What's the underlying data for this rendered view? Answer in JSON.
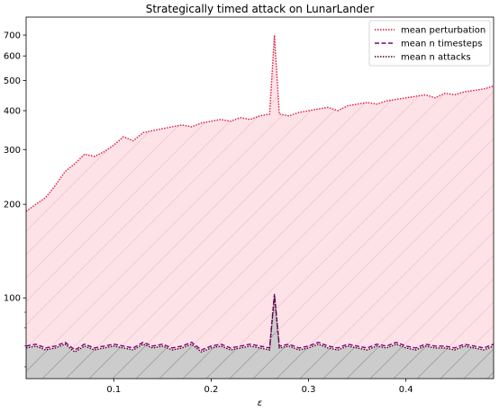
{
  "chart_data": {
    "type": "line",
    "title": "Strategically timed attack on LunarLander",
    "xlabel": "ε",
    "ylabel": "",
    "yscale": "log",
    "xlim": [
      0.01,
      0.49
    ],
    "ylim": [
      55,
      800
    ],
    "x_ticks": [
      0.1,
      0.2,
      0.3,
      0.4
    ],
    "x_tick_labels": [
      "0.1",
      "0.2",
      "0.3",
      "0.4"
    ],
    "y_ticks": [
      100,
      200,
      300,
      400,
      500,
      600,
      700
    ],
    "y_tick_labels": [
      "100",
      "200",
      "300",
      "400",
      "500",
      "600",
      "700"
    ],
    "legend_position": "top-right",
    "series": [
      {
        "name": "mean perturbation",
        "style": "dotted",
        "color": "#dc143c",
        "fill": "#fde3e8",
        "x": [
          0.01,
          0.02,
          0.03,
          0.04,
          0.05,
          0.06,
          0.07,
          0.08,
          0.09,
          0.1,
          0.11,
          0.12,
          0.13,
          0.14,
          0.15,
          0.16,
          0.17,
          0.18,
          0.19,
          0.2,
          0.21,
          0.22,
          0.23,
          0.24,
          0.25,
          0.26,
          0.265,
          0.27,
          0.28,
          0.29,
          0.3,
          0.31,
          0.32,
          0.33,
          0.34,
          0.35,
          0.36,
          0.37,
          0.38,
          0.39,
          0.4,
          0.41,
          0.42,
          0.43,
          0.44,
          0.45,
          0.46,
          0.47,
          0.48,
          0.49
        ],
        "values": [
          190,
          200,
          210,
          230,
          255,
          270,
          290,
          285,
          295,
          310,
          330,
          320,
          340,
          345,
          350,
          355,
          360,
          355,
          365,
          370,
          375,
          370,
          380,
          375,
          385,
          390,
          700,
          390,
          385,
          395,
          400,
          405,
          410,
          400,
          415,
          420,
          425,
          420,
          430,
          435,
          440,
          445,
          450,
          440,
          455,
          450,
          460,
          465,
          470,
          480
        ]
      },
      {
        "name": "mean n timesteps",
        "style": "dashed",
        "color": "#800080",
        "x": [
          0.01,
          0.02,
          0.03,
          0.04,
          0.05,
          0.06,
          0.07,
          0.08,
          0.09,
          0.1,
          0.11,
          0.12,
          0.13,
          0.14,
          0.15,
          0.16,
          0.17,
          0.18,
          0.19,
          0.2,
          0.21,
          0.22,
          0.23,
          0.24,
          0.25,
          0.26,
          0.265,
          0.27,
          0.28,
          0.29,
          0.3,
          0.31,
          0.32,
          0.33,
          0.34,
          0.35,
          0.36,
          0.37,
          0.38,
          0.39,
          0.4,
          0.41,
          0.42,
          0.43,
          0.44,
          0.45,
          0.46,
          0.47,
          0.48,
          0.49
        ],
        "values": [
          70,
          71,
          69,
          70,
          72,
          68,
          71,
          69,
          70,
          71,
          70,
          69,
          72,
          70,
          71,
          69,
          70,
          72,
          68,
          70,
          71,
          69,
          70,
          71,
          70,
          69,
          103,
          70,
          71,
          69,
          70,
          72,
          70,
          69,
          71,
          70,
          69,
          71,
          70,
          72,
          70,
          69,
          71,
          70,
          70,
          69,
          71,
          70,
          69,
          71
        ]
      },
      {
        "name": "mean n attacks",
        "style": "dotted",
        "color": "#4a0020",
        "fill": "#cccccc",
        "x": [
          0.01,
          0.02,
          0.03,
          0.04,
          0.05,
          0.06,
          0.07,
          0.08,
          0.09,
          0.1,
          0.11,
          0.12,
          0.13,
          0.14,
          0.15,
          0.16,
          0.17,
          0.18,
          0.19,
          0.2,
          0.21,
          0.22,
          0.23,
          0.24,
          0.25,
          0.26,
          0.265,
          0.27,
          0.28,
          0.29,
          0.3,
          0.31,
          0.32,
          0.33,
          0.34,
          0.35,
          0.36,
          0.37,
          0.38,
          0.39,
          0.4,
          0.41,
          0.42,
          0.43,
          0.44,
          0.45,
          0.46,
          0.47,
          0.48,
          0.49
        ],
        "values": [
          69,
          70,
          68,
          69,
          71,
          67,
          70,
          68,
          69,
          70,
          69,
          68,
          71,
          69,
          70,
          68,
          69,
          71,
          67,
          69,
          70,
          68,
          69,
          70,
          69,
          68,
          102,
          69,
          70,
          68,
          69,
          71,
          69,
          68,
          70,
          69,
          68,
          70,
          69,
          71,
          69,
          68,
          70,
          69,
          69,
          68,
          70,
          69,
          68,
          70
        ]
      }
    ]
  }
}
